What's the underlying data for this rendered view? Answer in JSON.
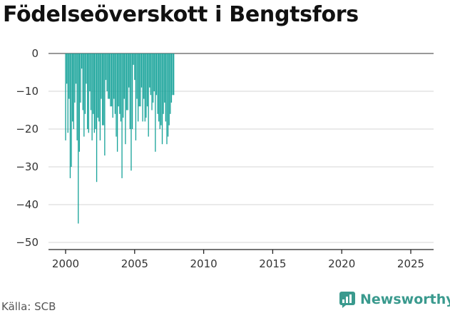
{
  "title": "Födelseöverskott i Bengtsfors",
  "source": "Källa: SCB",
  "brand": {
    "name": "Newsworthy",
    "icon": "newsworthy-logo-icon",
    "color": "#3a9a8e"
  },
  "chart_data": {
    "type": "bar",
    "bar_color": "#18a39a",
    "grid": true,
    "ylim": [
      -50,
      0
    ],
    "yticks": [
      0,
      -10,
      -20,
      -30,
      -40,
      -50
    ],
    "ytick_labels": [
      "0",
      "−10",
      "−20",
      "−30",
      "−40",
      "−50"
    ],
    "xlim": [
      2000,
      2025
    ],
    "xticks": [
      2000,
      2005,
      2010,
      2015,
      2020,
      2025
    ],
    "xtick_labels": [
      "2000",
      "2005",
      "2010",
      "2015",
      "2020",
      "2025"
    ],
    "start": "2000-01",
    "frequency": "monthly",
    "values": [
      -23,
      -8,
      -21,
      -12,
      -33,
      -30,
      -18,
      -20,
      -13,
      -8,
      -23,
      -45,
      -26,
      -13,
      -4,
      -15,
      -22,
      -16,
      -8,
      -20,
      -21,
      -10,
      -15,
      -23,
      -16,
      -21,
      -20,
      -34,
      -17,
      -18,
      -23,
      -12,
      -19,
      -19,
      -27,
      -7,
      -10,
      -12,
      -12,
      -14,
      -14,
      -17,
      -12,
      -16,
      -22,
      -26,
      -14,
      -16,
      -18,
      -33,
      -17,
      -12,
      -24,
      -15,
      -15,
      -9,
      -20,
      -31,
      -20,
      -3,
      -7,
      -23,
      -12,
      -18,
      -14,
      -14,
      -9,
      -18,
      -12,
      -18,
      -17,
      -14,
      -22,
      -9,
      -11,
      -15,
      -13,
      -10,
      -26,
      -11,
      -16,
      -18,
      -20,
      -19,
      -24,
      -16,
      -13,
      -18,
      -24,
      -22,
      -19,
      -16,
      -13,
      -11,
      -11
    ]
  }
}
